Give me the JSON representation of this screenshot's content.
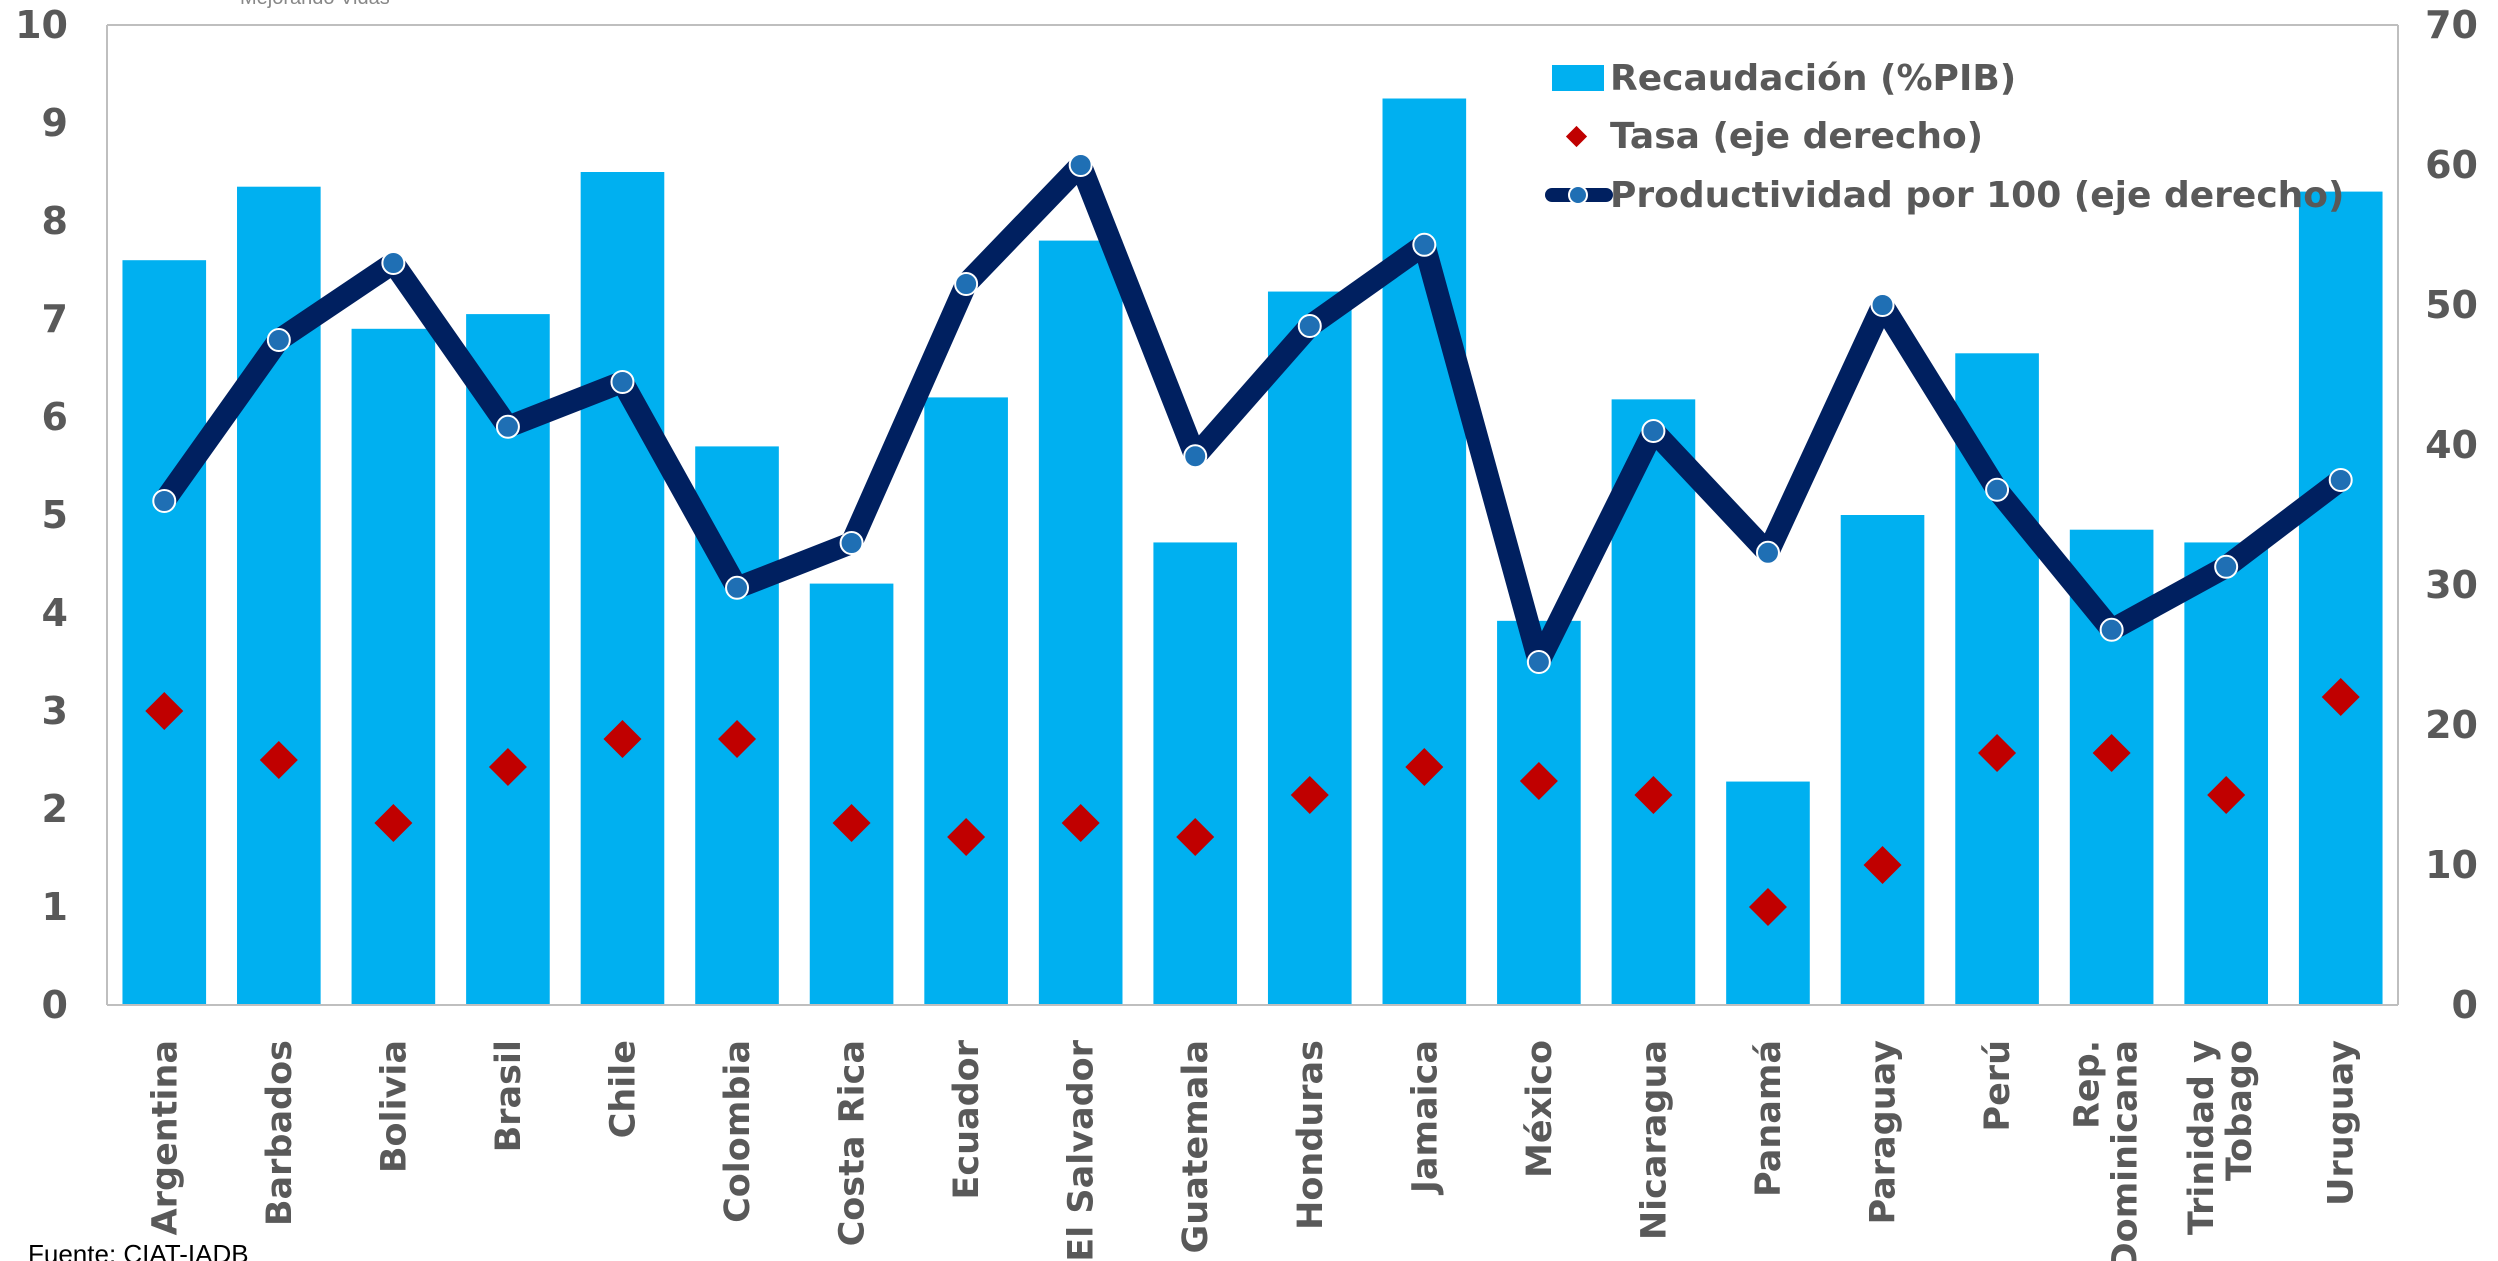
{
  "chart_data": {
    "type": "bar",
    "categories": [
      "Argentina",
      "Barbados",
      "Bolivia",
      "Brasil",
      "Chile",
      "Colombia",
      "Costa Rica",
      "Ecuador",
      "El Salvador",
      "Guatemala",
      "Honduras",
      "Jamaica",
      "México",
      "Nicaragua",
      "Panamá",
      "Paraguay",
      "Perú",
      "Rep. Dominicana",
      "Trinidad y Tobago",
      "Uruguay"
    ],
    "series": [
      {
        "name": "Recaudación (%PIB)",
        "type": "bar",
        "axis": "left",
        "color": "#00B0F0",
        "values": [
          7.6,
          8.35,
          6.9,
          7.05,
          8.5,
          5.7,
          4.3,
          6.2,
          7.8,
          4.72,
          7.28,
          9.25,
          3.92,
          6.18,
          2.28,
          5.0,
          6.65,
          4.85,
          4.72,
          8.3
        ]
      },
      {
        "name": "Tasa (eje derecho)",
        "type": "scatter",
        "marker": "diamond",
        "axis": "right",
        "color": "#C00000",
        "values": [
          21,
          17.5,
          13,
          17,
          19,
          19,
          13,
          12,
          13,
          12,
          15,
          17,
          16,
          15,
          7,
          10,
          18,
          18,
          15,
          22
        ]
      },
      {
        "name": "Productividad por 100 (eje derecho)",
        "type": "line",
        "axis": "right",
        "color": "#002060",
        "marker_color": "#1F6FB4",
        "values": [
          36,
          47.5,
          53,
          41.3,
          44.5,
          29.8,
          33,
          51.5,
          60,
          39.2,
          48.5,
          54.3,
          24.5,
          41,
          32.3,
          50,
          36.8,
          26.8,
          31.3,
          37.5
        ]
      }
    ],
    "y_left": {
      "range": [
        0,
        10
      ],
      "ticks": [
        "0",
        "1",
        "2",
        "3",
        "4",
        "5",
        "6",
        "7",
        "8",
        "9",
        "10"
      ]
    },
    "y_right": {
      "range": [
        0,
        70
      ],
      "ticks": [
        "0",
        "10",
        "20",
        "30",
        "40",
        "50",
        "60",
        "70"
      ]
    },
    "legend_position": "top-right",
    "grid": false,
    "title": ""
  },
  "source_note": "Fuente: CIAT-IADB",
  "top_faint_text": "Mejorando Vidas"
}
